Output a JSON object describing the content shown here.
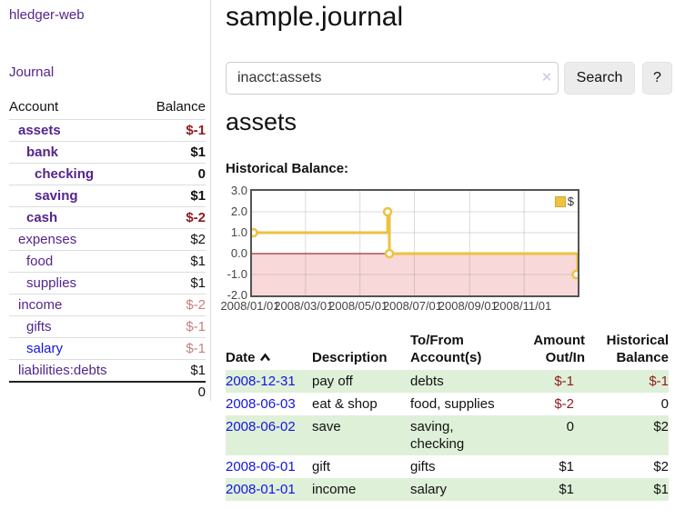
{
  "app": {
    "title": "hledger-web"
  },
  "colors": {
    "accent_purple": "#54258c",
    "link_blue": "#1414e0",
    "negative_strong": "#8f1a1f",
    "negative_soft": "#c5807f",
    "row_green": "#dff0d8",
    "series_yellow": "#edc240",
    "negative_fill": "#f8d8d8",
    "zero_line": "#8b0000"
  },
  "sidebar": {
    "journal_link": "Journal",
    "headers": {
      "account": "Account",
      "balance": "Balance"
    },
    "accounts": [
      {
        "label": "assets",
        "indent": 1,
        "bold": true,
        "link": "purple",
        "balance": "$-1",
        "balance_class": "neg"
      },
      {
        "label": "bank",
        "indent": 2,
        "bold": true,
        "link": "purple",
        "balance": "$1",
        "balance_class": "plain"
      },
      {
        "label": "checking",
        "indent": 3,
        "bold": true,
        "link": "purple",
        "balance": "0",
        "balance_class": "plain"
      },
      {
        "label": "saving",
        "indent": 3,
        "bold": true,
        "link": "purple",
        "balance": "$1",
        "balance_class": "plain"
      },
      {
        "label": "cash",
        "indent": 2,
        "bold": true,
        "link": "purple",
        "balance": "$-2",
        "balance_class": "neg"
      },
      {
        "label": "expenses",
        "indent": 1,
        "bold": false,
        "link": "purple",
        "balance": "$2",
        "balance_class": "plain"
      },
      {
        "label": "food",
        "indent": 2,
        "bold": false,
        "link": "purple",
        "balance": "$1",
        "balance_class": "plain"
      },
      {
        "label": "supplies",
        "indent": 2,
        "bold": false,
        "link": "purple",
        "balance": "$1",
        "balance_class": "plain"
      },
      {
        "label": "income",
        "indent": 1,
        "bold": false,
        "link": "purple",
        "balance": "$-2",
        "balance_class": "neg-soft"
      },
      {
        "label": "gifts",
        "indent": 2,
        "bold": false,
        "link": "purple",
        "balance": "$-1",
        "balance_class": "neg-soft"
      },
      {
        "label": "salary",
        "indent": 2,
        "bold": false,
        "link": "blue",
        "balance": "$-1",
        "balance_class": "neg-soft"
      },
      {
        "label": "liabilities:debts",
        "indent": 1,
        "bold": false,
        "link": "purple",
        "balance": "$1",
        "balance_class": "plain"
      }
    ],
    "total": "0"
  },
  "main": {
    "title": "sample.journal",
    "search": {
      "value": "inacct:assets",
      "clear_icon": "✕",
      "button_label": "Search",
      "help_label": "?"
    },
    "account_heading": "assets",
    "chart_label": "Historical Balance:"
  },
  "chart_data": {
    "type": "line",
    "title": "Historical Balance",
    "step": true,
    "series": [
      {
        "name": "$",
        "color": "#edc240",
        "points": [
          [
            "2008-01-01",
            1.0
          ],
          [
            "2008-06-01",
            2.0
          ],
          [
            "2008-06-03",
            0.0
          ],
          [
            "2008-12-31",
            -1.0
          ]
        ]
      }
    ],
    "x_range": [
      "2008-01-01",
      "2008-12-31"
    ],
    "x_ticks": [
      "2008/01/01",
      "2008/03/01",
      "2008/05/01",
      "2008/07/01",
      "2008/09/01",
      "2008/11/01"
    ],
    "y_ticks": [
      3,
      2,
      1,
      0,
      -1,
      -2
    ],
    "ylim": [
      -2.0,
      3.0
    ],
    "grid": true,
    "legend_position": "top-right",
    "legend_label": "$"
  },
  "register": {
    "headers": {
      "date": "Date",
      "description": "Description",
      "accounts": "To/From Account(s)",
      "amount": "Amount Out/In",
      "balance": "Historical Balance"
    },
    "rows": [
      {
        "date": "2008-12-31",
        "description": "pay off",
        "accounts": "debts",
        "amount": "$-1",
        "amount_class": "neg",
        "balance": "$-1",
        "balance_class": "neg"
      },
      {
        "date": "2008-06-03",
        "description": "eat & shop",
        "accounts": "food, supplies",
        "amount": "$-2",
        "amount_class": "neg",
        "balance": "0",
        "balance_class": "plain"
      },
      {
        "date": "2008-06-02",
        "description": "save",
        "accounts": "saving, checking",
        "amount": "0",
        "amount_class": "plain",
        "balance": "$2",
        "balance_class": "plain"
      },
      {
        "date": "2008-06-01",
        "description": "gift",
        "accounts": "gifts",
        "amount": "$1",
        "amount_class": "plain",
        "balance": "$2",
        "balance_class": "plain"
      },
      {
        "date": "2008-01-01",
        "description": "income",
        "accounts": "salary",
        "amount": "$1",
        "amount_class": "plain",
        "balance": "$1",
        "balance_class": "plain"
      }
    ]
  }
}
